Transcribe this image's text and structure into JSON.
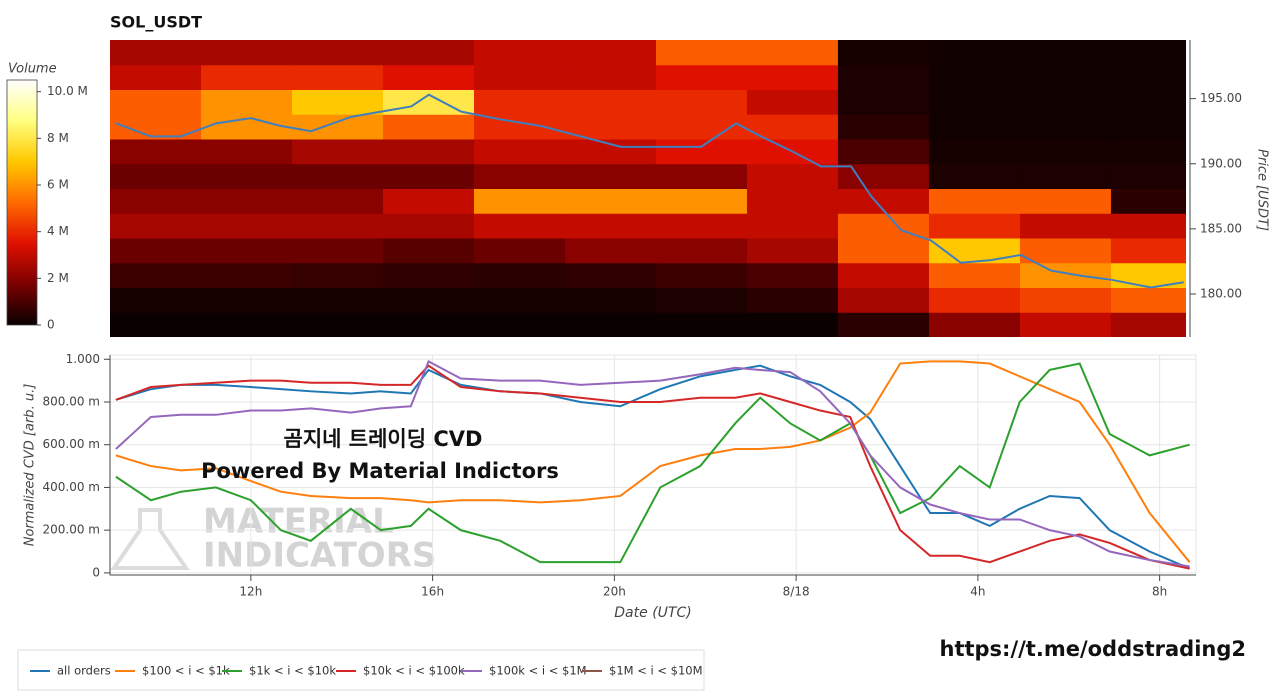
{
  "chart_data": [
    {
      "type": "heatmap",
      "title": "SOL_USDT",
      "colorbar_title": "Volume",
      "colorscale": [
        "#0a0000",
        "#7a0000",
        "#e01000",
        "#ff6a00",
        "#ffc800",
        "#ffff80",
        "#ffffff"
      ],
      "clim": [
        0,
        10500000
      ],
      "colorbar_ticks": [
        0,
        {
          "value": 2000000,
          "label": "2 M"
        },
        {
          "value": 4000000,
          "label": "4 M"
        },
        {
          "value": 6000000,
          "label": "6 M"
        },
        {
          "value": 8000000,
          "label": "8 M"
        },
        {
          "value": 10000000,
          "label": "10.0 M"
        }
      ],
      "ylabel": "Price [USDT]",
      "xlim": [
        8.9,
        32.55
      ],
      "ylim": [
        176.7,
        199.5
      ],
      "yticks": [
        {
          "value": 180,
          "label": "180.00"
        },
        {
          "value": 185,
          "label": "185.00"
        },
        {
          "value": 190,
          "label": "190.00"
        },
        {
          "value": 195,
          "label": "195.00"
        }
      ],
      "x_edges": [
        8.9,
        10.9,
        12.9,
        14.9,
        16.9,
        18.9,
        20.9,
        22.9,
        24.9,
        26.9,
        28.9,
        30.9,
        32.55
      ],
      "y_edges": [
        176.7,
        178.6,
        180.5,
        182.4,
        184.3,
        186.2,
        188.1,
        190.0,
        191.9,
        193.8,
        195.7,
        197.6,
        199.5
      ],
      "z": [
        [
          0,
          0,
          0,
          0,
          0,
          0,
          0,
          0,
          500000.0,
          2000000.0,
          3000000.0,
          2500000.0
        ],
        [
          200000.0,
          200000.0,
          200000.0,
          200000.0,
          200000.0,
          200000.0,
          300000.0,
          500000.0,
          2500000.0,
          4000000.0,
          4500000.0,
          5000000.0
        ],
        [
          800000.0,
          800000.0,
          700000.0,
          600000.0,
          500000.0,
          600000.0,
          800000.0,
          1000000.0,
          3000000.0,
          5000000.0,
          6000000.0,
          7000000.0
        ],
        [
          1500000.0,
          1500000.0,
          1500000.0,
          1200000.0,
          1500000.0,
          2000000.0,
          2000000.0,
          2500000.0,
          5000000.0,
          7000000.0,
          5000000.0,
          4000000.0
        ],
        [
          2500000.0,
          2500000.0,
          2500000.0,
          2500000.0,
          3000000.0,
          3000000.0,
          3000000.0,
          3000000.0,
          5000000.0,
          4000000.0,
          3000000.0,
          3000000.0
        ],
        [
          2000000.0,
          2000000.0,
          2000000.0,
          3000000.0,
          6000000.0,
          6000000.0,
          6000000.0,
          3000000.0,
          3000000.0,
          5000000.0,
          5000000.0,
          500000.0
        ],
        [
          1500000.0,
          1500000.0,
          1500000.0,
          1500000.0,
          2000000.0,
          2000000.0,
          2000000.0,
          3000000.0,
          2000000.0,
          300000.0,
          300000.0,
          300000.0
        ],
        [
          2000000.0,
          2000000.0,
          2500000.0,
          2500000.0,
          3000000.0,
          3000000.0,
          3500000.0,
          3500000.0,
          1000000.0,
          200000.0,
          200000.0,
          200000.0
        ],
        [
          5000000.0,
          6000000.0,
          6000000.0,
          5000000.0,
          4000000.0,
          4000000.0,
          4000000.0,
          4000000.0,
          500000.0,
          100000.0,
          100000.0,
          100000.0
        ],
        [
          5000000.0,
          6000000.0,
          7000000.0,
          8000000.0,
          4000000.0,
          4000000.0,
          4000000.0,
          3000000.0,
          300000.0,
          100000.0,
          100000.0,
          100000.0
        ],
        [
          3000000.0,
          4000000.0,
          4000000.0,
          3500000.0,
          3000000.0,
          3000000.0,
          3500000.0,
          3500000.0,
          300000.0,
          100000.0,
          100000.0,
          100000.0
        ],
        [
          2500000.0,
          2500000.0,
          2500000.0,
          2500000.0,
          3000000.0,
          3000000.0,
          5000000.0,
          5000000.0,
          200000.0,
          100000.0,
          100000.0,
          100000.0
        ]
      ],
      "line": {
        "color": "#3f7fbf",
        "x": [
          9.03,
          9.8,
          10.46,
          11.23,
          12.0,
          12.66,
          13.32,
          14.2,
          14.86,
          15.52,
          15.91,
          16.62,
          17.49,
          18.37,
          19.25,
          20.13,
          21.01,
          21.89,
          22.66,
          23.21,
          23.87,
          24.53,
          25.19,
          25.63,
          26.29,
          26.95,
          27.6,
          28.26,
          28.92,
          29.58,
          30.24,
          30.9,
          31.78,
          32.5
        ],
        "values": [
          193.1,
          192.1,
          192.1,
          193.1,
          193.5,
          192.9,
          192.5,
          193.6,
          194.0,
          194.4,
          195.3,
          194.0,
          193.4,
          192.9,
          192.1,
          191.3,
          191.3,
          191.3,
          193.1,
          192.1,
          191.0,
          189.8,
          189.8,
          187.5,
          184.9,
          184.1,
          182.4,
          182.6,
          183.0,
          181.8,
          181.4,
          181.1,
          180.5,
          180.9
        ]
      }
    },
    {
      "type": "line",
      "ylabel": "Normalized CVD [arb. u.]",
      "xlabel": "Date (UTC)",
      "xlim": [
        8.9,
        32.8
      ],
      "ylim": [
        -0.01,
        1.02
      ],
      "xticks": [
        {
          "value": 12,
          "label": "12h"
        },
        {
          "value": 16,
          "label": "16h"
        },
        {
          "value": 20,
          "label": "20h"
        },
        {
          "value": 24,
          "label": "8/18"
        },
        {
          "value": 28,
          "label": "4h"
        },
        {
          "value": 32,
          "label": "8h"
        }
      ],
      "yticks": [
        0,
        {
          "value": 0.2,
          "label": "200.00 m"
        },
        {
          "value": 0.4,
          "label": "400.00 m"
        },
        {
          "value": 0.6,
          "label": "600.00 m"
        },
        {
          "value": 0.8,
          "label": "800.00 m"
        },
        {
          "value": 1,
          "label": "1.000"
        }
      ],
      "grid": true,
      "x": [
        9.03,
        9.8,
        10.46,
        11.23,
        12.0,
        12.66,
        13.32,
        14.2,
        14.86,
        15.52,
        15.91,
        16.62,
        17.49,
        18.37,
        19.25,
        20.13,
        21.01,
        21.89,
        22.66,
        23.21,
        23.87,
        24.53,
        25.19,
        25.63,
        26.29,
        26.95,
        27.6,
        28.26,
        28.92,
        29.58,
        30.24,
        30.9,
        31.78,
        32.66
      ],
      "series": [
        {
          "name": "all orders",
          "color": "#1f77b4",
          "values": [
            0.81,
            0.86,
            0.88,
            0.88,
            0.87,
            0.86,
            0.85,
            0.84,
            0.85,
            0.84,
            0.95,
            0.88,
            0.85,
            0.84,
            0.8,
            0.78,
            0.86,
            0.92,
            0.95,
            0.97,
            0.92,
            0.88,
            0.8,
            0.72,
            0.5,
            0.28,
            0.28,
            0.22,
            0.3,
            0.36,
            0.35,
            0.2,
            0.1,
            0.02
          ]
        },
        {
          "name": "$100 < i < $1k",
          "color": "#ff7f0e",
          "values": [
            0.55,
            0.5,
            0.48,
            0.49,
            0.43,
            0.38,
            0.36,
            0.35,
            0.35,
            0.34,
            0.33,
            0.34,
            0.34,
            0.33,
            0.34,
            0.36,
            0.5,
            0.55,
            0.58,
            0.58,
            0.59,
            0.62,
            0.68,
            0.75,
            0.98,
            0.99,
            0.99,
            0.98,
            0.92,
            0.86,
            0.8,
            0.6,
            0.28,
            0.05
          ]
        },
        {
          "name": "$1k < i < $10k",
          "color": "#2ca02c",
          "values": [
            0.45,
            0.34,
            0.38,
            0.4,
            0.34,
            0.2,
            0.15,
            0.3,
            0.2,
            0.22,
            0.3,
            0.2,
            0.15,
            0.05,
            0.05,
            0.05,
            0.4,
            0.5,
            0.7,
            0.82,
            0.7,
            0.62,
            0.7,
            0.55,
            0.28,
            0.35,
            0.5,
            0.4,
            0.8,
            0.95,
            0.98,
            0.65,
            0.55,
            0.6
          ]
        },
        {
          "name": "$10k < i < $100k",
          "color": "#d62728",
          "values": [
            0.81,
            0.87,
            0.88,
            0.89,
            0.9,
            0.9,
            0.89,
            0.89,
            0.88,
            0.88,
            0.97,
            0.87,
            0.85,
            0.84,
            0.82,
            0.8,
            0.8,
            0.82,
            0.82,
            0.84,
            0.8,
            0.76,
            0.73,
            0.5,
            0.2,
            0.08,
            0.08,
            0.05,
            0.1,
            0.15,
            0.18,
            0.14,
            0.06,
            0.02
          ]
        },
        {
          "name": "$100k < i < $1M",
          "color": "#9467bd",
          "values": [
            0.58,
            0.73,
            0.74,
            0.74,
            0.76,
            0.76,
            0.77,
            0.75,
            0.77,
            0.78,
            0.99,
            0.91,
            0.9,
            0.9,
            0.88,
            0.89,
            0.9,
            0.93,
            0.96,
            0.95,
            0.94,
            0.85,
            0.7,
            0.55,
            0.4,
            0.32,
            0.28,
            0.25,
            0.25,
            0.2,
            0.17,
            0.1,
            0.06,
            0.03
          ]
        },
        {
          "name": "$1M < i < $10M",
          "color": "#8c564b",
          "values": [
            null,
            null,
            null,
            null,
            null,
            null,
            null,
            null,
            null,
            null,
            null,
            null,
            null,
            null,
            null,
            null,
            null,
            null,
            null,
            null,
            null,
            null,
            null,
            null,
            null,
            null,
            null,
            null,
            null,
            null,
            null,
            null,
            null,
            null
          ]
        }
      ],
      "annotations": [
        "곰지네 트레이딩 CVD",
        "Powered By Material Indictors"
      ],
      "watermark": [
        "MATERIAL",
        "INDICATORS"
      ],
      "link": "https://t.me/oddstrading2"
    }
  ]
}
